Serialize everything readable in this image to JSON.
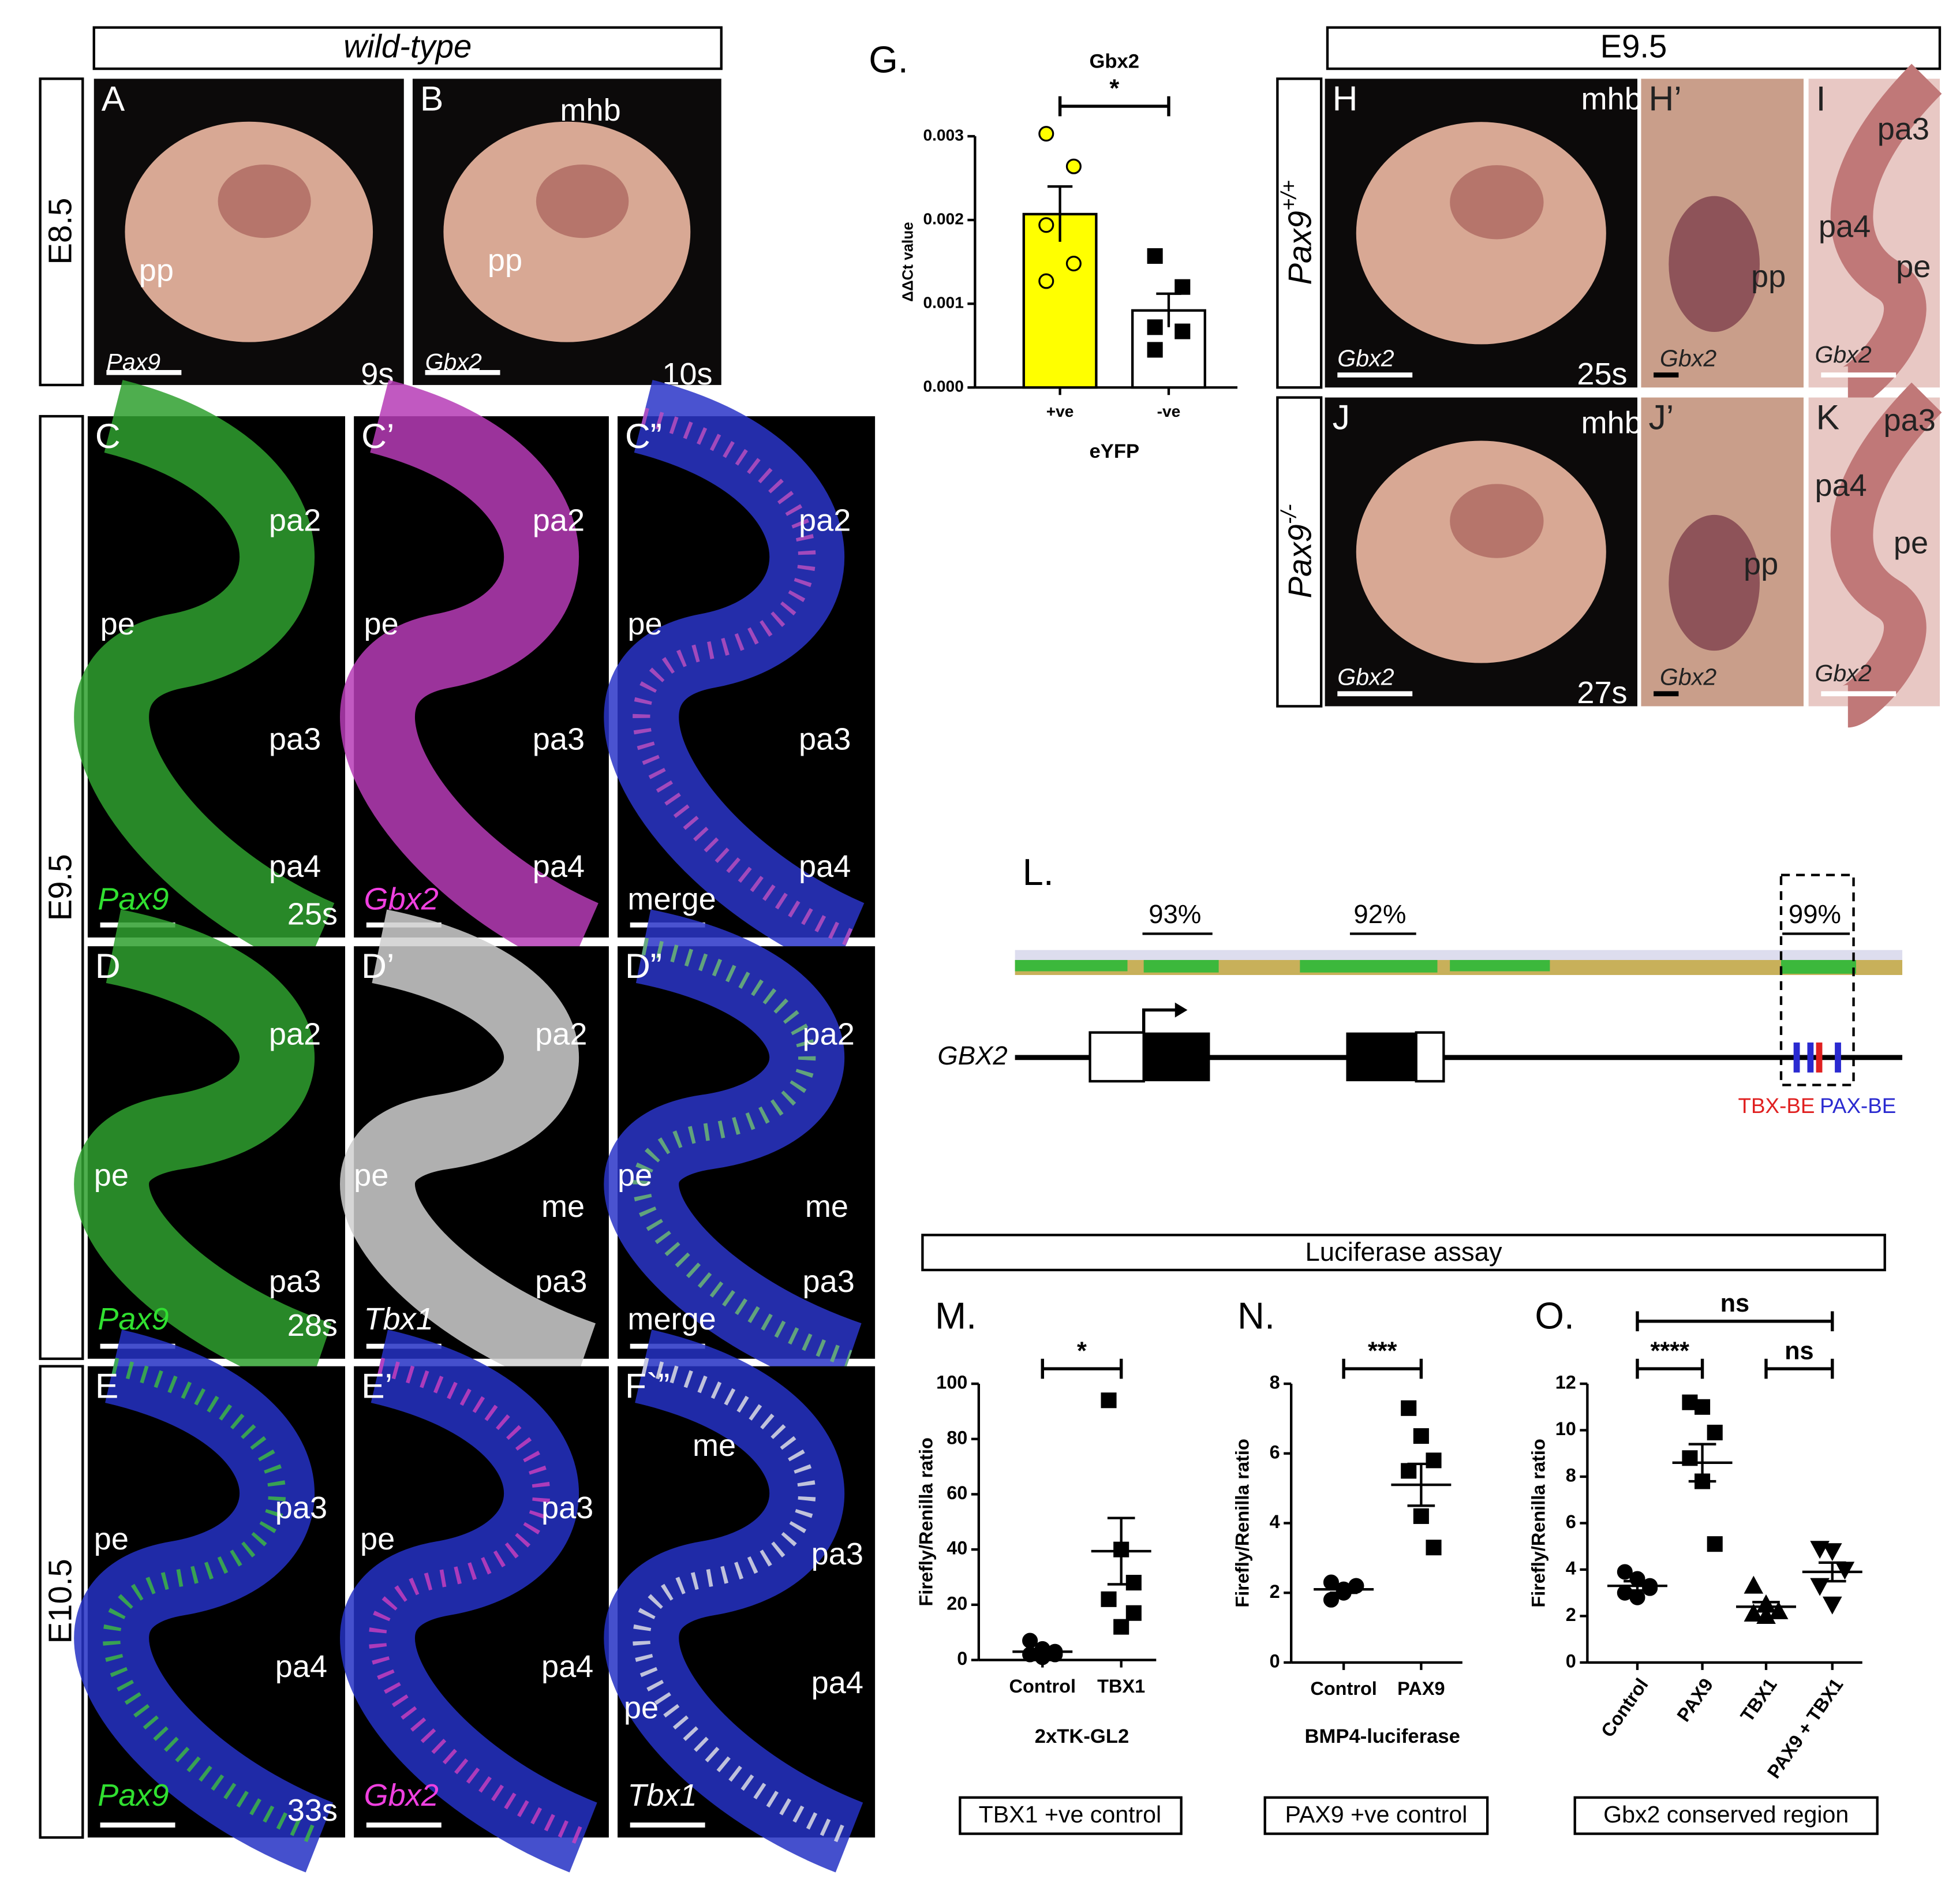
{
  "figure": {
    "headers": {
      "wild_type": "wild-type",
      "e95_top": "E9.5",
      "e85": "E8.5",
      "e95_side": "E9.5",
      "e105": "E10.5",
      "luciferase": "Luciferase assay"
    },
    "genotypes": [
      {
        "gene": "Pax9",
        "sup": "+/+"
      },
      {
        "gene": "Pax9",
        "sup": "-/-"
      }
    ],
    "panels": [
      {
        "letter": "A",
        "labels": [
          "pp",
          "Pax9",
          "9s"
        ]
      },
      {
        "letter": "B",
        "labels": [
          "mhb",
          "pp",
          "Gbx2",
          "10s"
        ]
      },
      {
        "letter": "H",
        "labels": [
          "mhb",
          "Gbx2",
          "25s"
        ]
      },
      {
        "letter": "H’",
        "labels": [
          "pp",
          "Gbx2"
        ]
      },
      {
        "letter": "I",
        "labels": [
          "pa3",
          "pa4",
          "pe",
          "Gbx2"
        ]
      },
      {
        "letter": "J",
        "labels": [
          "mhb",
          "Gbx2",
          "27s"
        ]
      },
      {
        "letter": "J’",
        "labels": [
          "pp",
          "Gbx2"
        ]
      },
      {
        "letter": "K",
        "labels": [
          "pa3",
          "pa4",
          "pe",
          "Gbx2"
        ]
      },
      {
        "letter": "C",
        "labels": [
          "pa2",
          "pe",
          "pa3",
          "pa4",
          "Pax9",
          "25s"
        ]
      },
      {
        "letter": "C’",
        "labels": [
          "pa2",
          "pe",
          "pa3",
          "pa4",
          "Gbx2"
        ]
      },
      {
        "letter": "C”",
        "labels": [
          "pa2",
          "pe",
          "pa3",
          "pa4",
          "merge"
        ]
      },
      {
        "letter": "D",
        "labels": [
          "pa2",
          "pe",
          "pa3",
          "Pax9",
          "28s"
        ]
      },
      {
        "letter": "D’",
        "labels": [
          "pa2",
          "pe",
          "me",
          "pa3",
          "Tbx1"
        ]
      },
      {
        "letter": "D”",
        "labels": [
          "pa2",
          "pe",
          "me",
          "pa3",
          "merge"
        ]
      },
      {
        "letter": "E",
        "labels": [
          "pa3",
          "pe",
          "pa4",
          "Pax9",
          "33s"
        ]
      },
      {
        "letter": "E’",
        "labels": [
          "pa3",
          "pe",
          "pa4",
          "Gbx2"
        ]
      },
      {
        "letter": "F`”",
        "labels": [
          "me",
          "pa3",
          "pe",
          "pa4",
          "Tbx1"
        ]
      }
    ],
    "diagram": {
      "panel": "L.",
      "identities": [
        "93%",
        "92%",
        "99%"
      ],
      "gene": "GBX2",
      "sites": [
        "TBX-BE",
        "PAX-BE"
      ]
    },
    "boxes": [
      "TBX1 +ve control",
      "PAX9 +ve control",
      "Gbx2 conserved region"
    ]
  },
  "chart_data": [
    {
      "type": "bar",
      "panel": "G.",
      "title": "Gbx2",
      "y_label": "ΔΔCt value",
      "x_label": "eYFP",
      "categories": [
        "+ve",
        "-ve"
      ],
      "colors": [
        "#ffff00",
        "#ffffff"
      ],
      "values": [
        0.00207,
        0.00092
      ],
      "errors": [
        0.00033,
        0.0002
      ],
      "points": [
        [
          0.00303,
          0.00264,
          0.00194,
          0.00148,
          0.00127
        ],
        [
          0.00157,
          0.0012,
          0.00072,
          0.00067,
          0.00045
        ]
      ],
      "markers": [
        "circle",
        "square"
      ],
      "significance": [
        "*"
      ],
      "ylim": [
        0,
        0.003
      ],
      "yticks": [
        {
          "value": 0,
          "label": "0.000"
        },
        {
          "value": 0.001,
          "label": "0.001"
        },
        {
          "value": 0.002,
          "label": "0.002"
        },
        {
          "value": 0.003,
          "label": "0.003"
        }
      ]
    },
    {
      "type": "dot",
      "panel": "M.",
      "y_label": "Firefly/Renilla ratio",
      "x_label": "2xTK-GL2",
      "categories": [
        "Control",
        "TBX1"
      ],
      "values": [
        3,
        39.4
      ],
      "errors": [
        1,
        12
      ],
      "points": [
        [
          7,
          4,
          3,
          2,
          1,
          2
        ],
        [
          94,
          40,
          28,
          22,
          12,
          17
        ]
      ],
      "markers": [
        "circle",
        "square"
      ],
      "significance": [
        "*"
      ],
      "ylim": [
        0,
        100
      ],
      "yticks": [
        0,
        20,
        40,
        60,
        80,
        100
      ]
    },
    {
      "type": "dot",
      "panel": "N.",
      "y_label": "Firefly/Renilla ratio",
      "x_label": "BMP4-luciferase",
      "categories": [
        "Control",
        "PAX9"
      ],
      "values": [
        2.1,
        5.1
      ],
      "errors": [
        0.1,
        0.6
      ],
      "points": [
        [
          2.3,
          2.1,
          2.2,
          1.8,
          2.0,
          2.2
        ],
        [
          7.3,
          6.5,
          5.8,
          5.5,
          4.2,
          3.3
        ]
      ],
      "markers": [
        "circle",
        "square"
      ],
      "significance": [
        "***"
      ],
      "ylim": [
        0,
        8
      ],
      "yticks": [
        0,
        2,
        4,
        6,
        8
      ]
    },
    {
      "type": "dot",
      "panel": "O.",
      "y_label": "Firefly/Renilla ratio",
      "categories": [
        "Control",
        "PAX9",
        "TBX1",
        "PAX9 + TBX1"
      ],
      "values": [
        3.3,
        8.6,
        2.4,
        3.9
      ],
      "errors": [
        0.2,
        0.8,
        0.2,
        0.4
      ],
      "points": [
        [
          3.9,
          3.6,
          3.3,
          3.0,
          2.8,
          3.2
        ],
        [
          11.2,
          11.0,
          9.9,
          8.8,
          7.8,
          5.1
        ],
        [
          3.3,
          2.5,
          2.2,
          2.1,
          2.0
        ],
        [
          4.9,
          4.8,
          4.0,
          3.3,
          2.5
        ]
      ],
      "markers": [
        "circle",
        "square",
        "triangle",
        "triangle-down"
      ],
      "significance": [
        "****",
        "ns",
        "ns"
      ],
      "ylim": [
        0,
        12
      ],
      "yticks": [
        0,
        2,
        4,
        6,
        8,
        10,
        12
      ]
    }
  ]
}
